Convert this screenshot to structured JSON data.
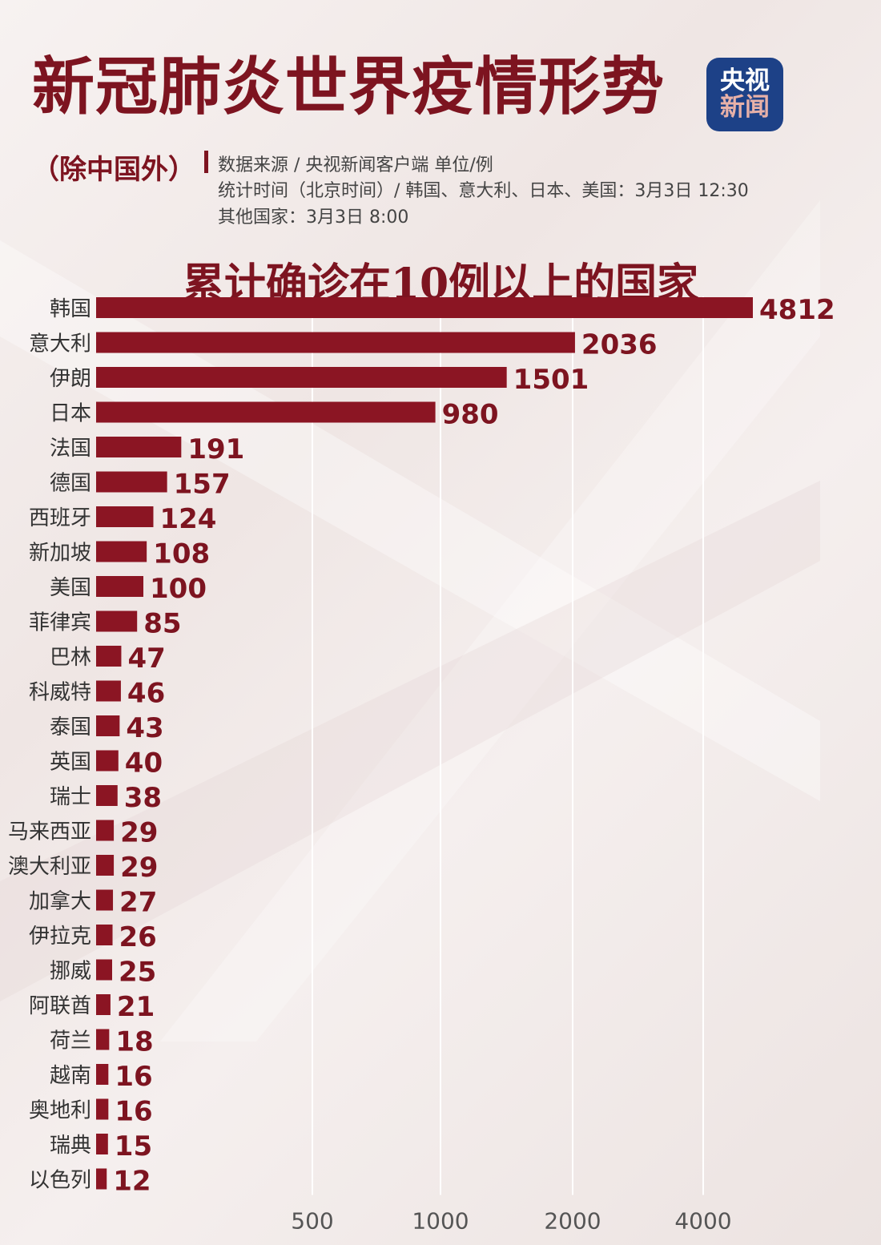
{
  "header": {
    "title": "新冠肺炎世界疫情形势",
    "subtitle": "（除中国外）",
    "source": "数据来源 / 央视新闻客户端 单位/例",
    "stat_time": "统计时间（北京时间）/ 韩国、意大利、日本、美国：3月3日 12:30",
    "other_time": "其他国家：3月3日 8:00"
  },
  "logo": {
    "line1": "央视",
    "line2": "新闻"
  },
  "colors": {
    "bar": "#8b1523",
    "title": "#7d1420",
    "logo_bg": "#1d4187",
    "grid": "#ffffff"
  },
  "chart_data": {
    "type": "bar",
    "orientation": "horizontal",
    "title": "累计确诊在10例以上的国家",
    "categories": [
      "韩国",
      "意大利",
      "伊朗",
      "日本",
      "法国",
      "德国",
      "西班牙",
      "新加坡",
      "美国",
      "菲律宾",
      "巴林",
      "科威特",
      "泰国",
      "英国",
      "瑞士",
      "马来西亚",
      "澳大利亚",
      "加拿大",
      "伊拉克",
      "挪威",
      "阿联酋",
      "荷兰",
      "越南",
      "奥地利",
      "瑞典",
      "以色列"
    ],
    "values": [
      4812,
      2036,
      1501,
      980,
      191,
      157,
      124,
      108,
      100,
      85,
      47,
      46,
      43,
      40,
      38,
      29,
      29,
      27,
      26,
      25,
      21,
      18,
      16,
      16,
      15,
      12
    ],
    "x_ticks": [
      "500",
      "1000",
      "2000",
      "4000"
    ],
    "xlabel": "",
    "ylabel": "",
    "grid": true,
    "legend": "none"
  }
}
